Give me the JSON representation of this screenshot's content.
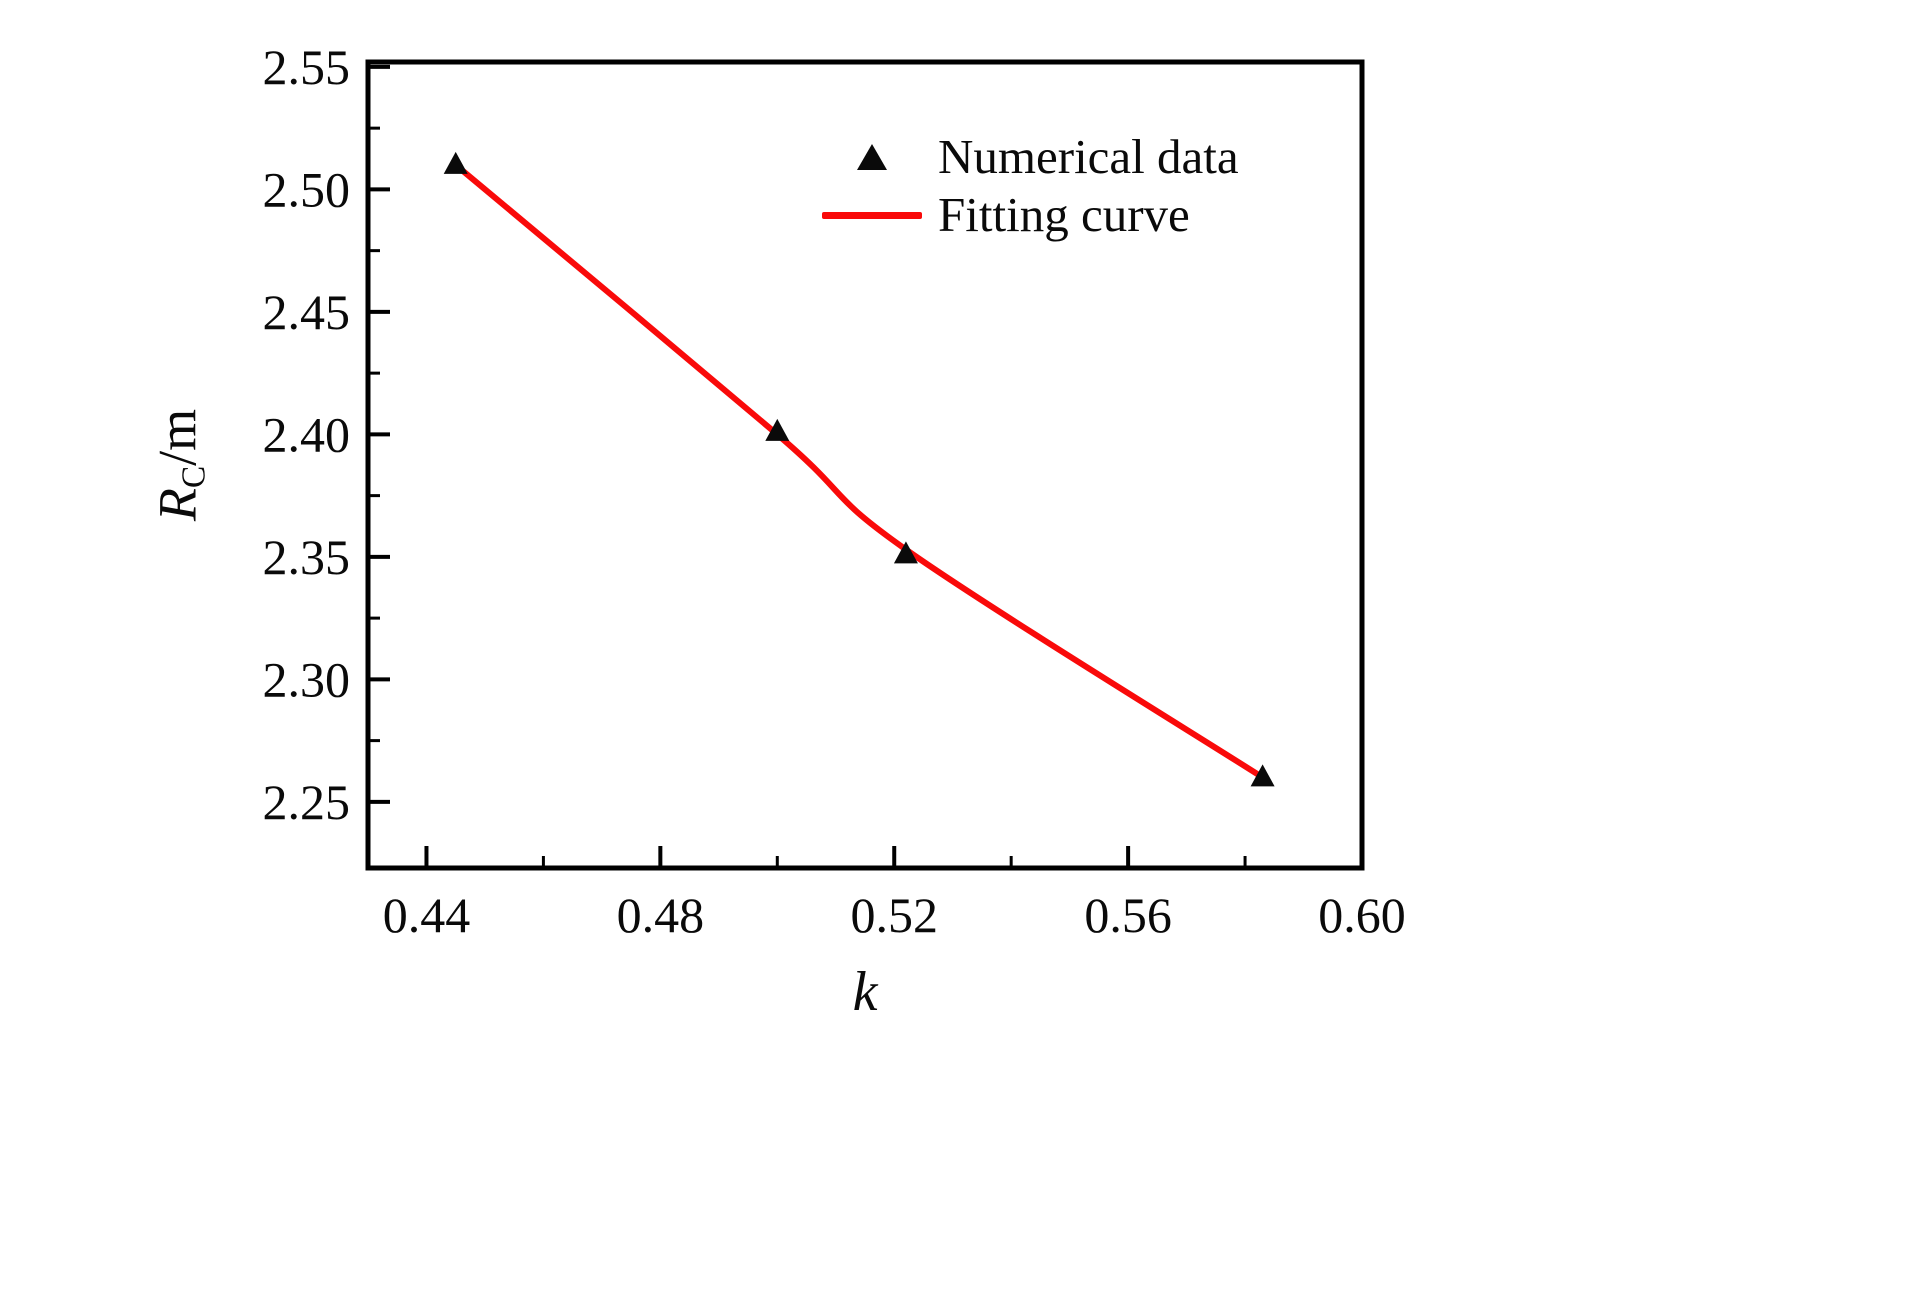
{
  "figure": {
    "background": "#ffffff"
  },
  "chart_data": {
    "type": "scatter",
    "title": "",
    "xlabel": "k",
    "ylabel": {
      "text": "R_C/m",
      "symbol": "R",
      "subscript": "C",
      "unit": "/m"
    },
    "xlim": [
      0.43,
      0.6
    ],
    "ylim": [
      2.223,
      2.552
    ],
    "grid": false,
    "x_ticks": [
      0.44,
      0.48,
      0.52,
      0.56,
      0.6
    ],
    "x_tick_labels": [
      "0.44",
      "0.48",
      "0.52",
      "0.56",
      "0.60"
    ],
    "x_minor_ticks": [
      0.46,
      0.5,
      0.54,
      0.58
    ],
    "y_ticks": [
      2.25,
      2.3,
      2.35,
      2.4,
      2.45,
      2.5,
      2.55
    ],
    "y_tick_labels": [
      "2.25",
      "2.30",
      "2.35",
      "2.40",
      "2.45",
      "2.50",
      "2.55"
    ],
    "y_minor_ticks": [
      2.275,
      2.325,
      2.375,
      2.425,
      2.475,
      2.525
    ],
    "colors": {
      "axis": "#000000",
      "text": "#0a0a0a",
      "marker": "#0a0a0a",
      "curve": "#f90a0a"
    },
    "series": [
      {
        "name": "Numerical data",
        "type": "scatter",
        "marker": "triangle-up",
        "color": "#0a0a0a",
        "points": [
          [
            0.445,
            2.51
          ],
          [
            0.5,
            2.401
          ],
          [
            0.522,
            2.351
          ],
          [
            0.583,
            2.26
          ]
        ]
      },
      {
        "name": "Fitting curve",
        "type": "line",
        "color": "#f90a0a",
        "width": 6,
        "points": [
          [
            0.445,
            2.51
          ],
          [
            0.5,
            2.4
          ],
          [
            0.522,
            2.353
          ],
          [
            0.583,
            2.26
          ]
        ]
      }
    ],
    "legend": {
      "position": "upper-right-inside",
      "entries": [
        {
          "label": "Numerical data",
          "marker": "triangle"
        },
        {
          "label": "Fitting curve",
          "marker": "line",
          "color": "#f90a0a"
        }
      ]
    }
  }
}
